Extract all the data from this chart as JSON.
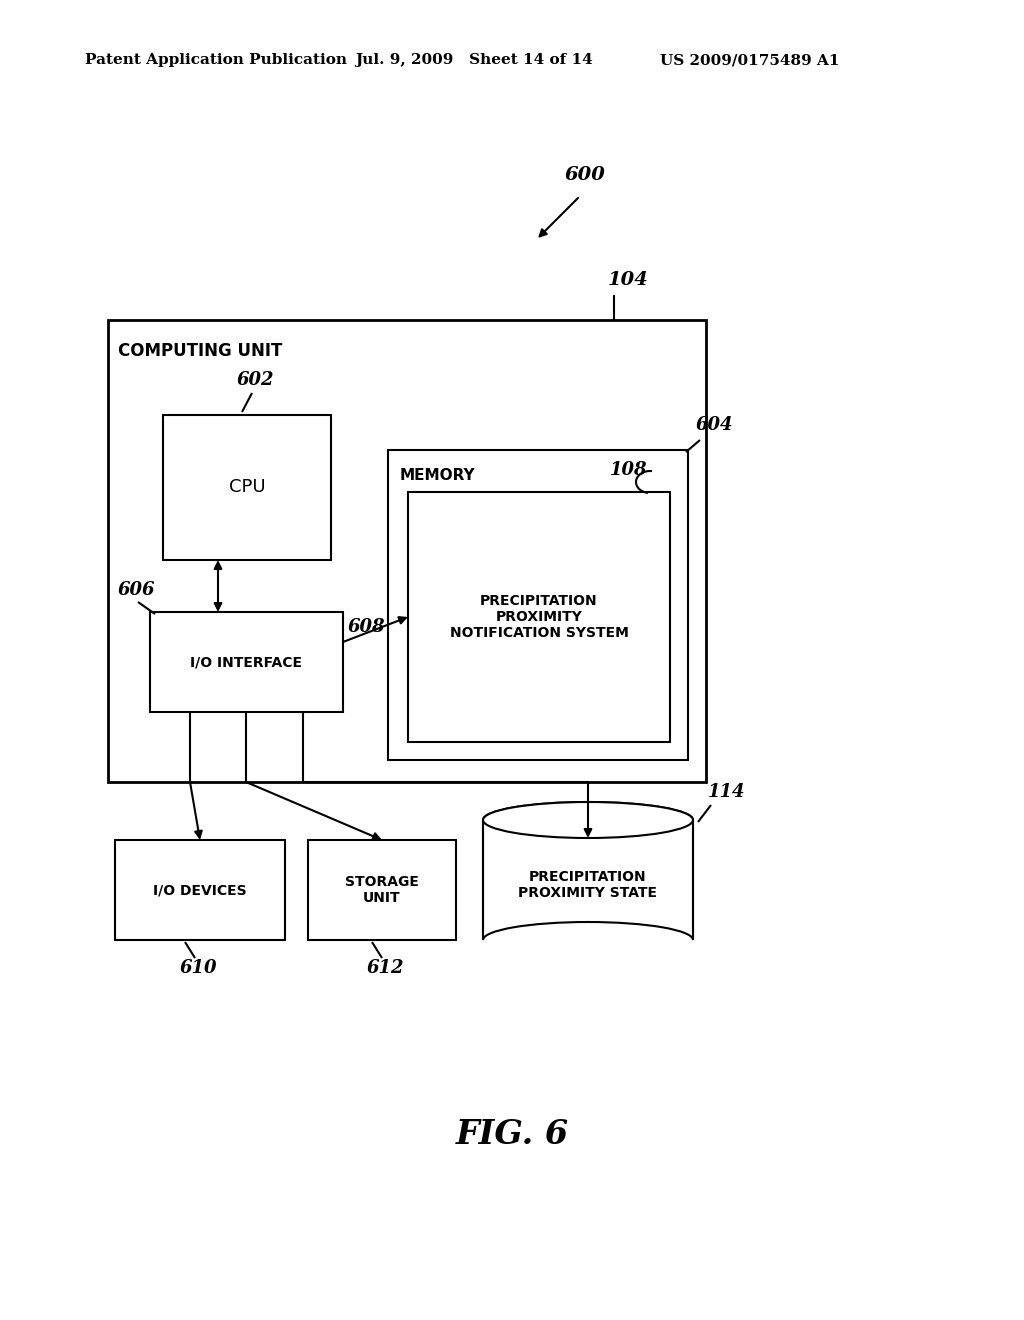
{
  "bg_color": "#ffffff",
  "header_left": "Patent Application Publication",
  "header_mid": "Jul. 9, 2009   Sheet 14 of 14",
  "header_right": "US 2009/0175489 A1",
  "fig_label": "FIG. 6",
  "label_600": "600",
  "label_104": "104",
  "label_602": "602",
  "label_604": "604",
  "label_108": "108",
  "label_606": "606",
  "label_608": "608",
  "label_610": "610",
  "label_612": "612",
  "label_114": "114",
  "computing_unit_label": "COMPUTING UNIT",
  "cpu_label": "CPU",
  "memory_label": "MEMORY",
  "ppns_label": "PRECIPITATION\nPROXIMITY\nNOTIFICATION SYSTEM",
  "io_interface_label": "I/O INTERFACE",
  "io_devices_label": "I/O DEVICES",
  "storage_unit_label": "STORAGE\nUNIT",
  "pps_label": "PRECIPITATION\nPROXIMITY STATE"
}
